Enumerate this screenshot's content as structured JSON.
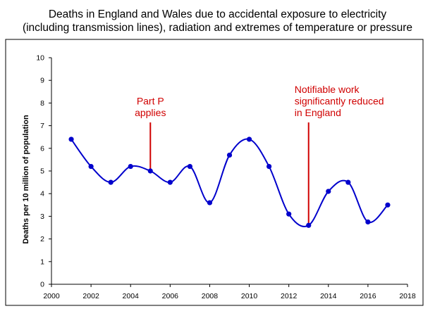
{
  "chart_data": {
    "type": "line",
    "title_line1": "Deaths in England and Wales due to accidental exposure to electricity",
    "title_line2": "(including transmission lines), radiation and extremes of temperature or pressure",
    "xlabel": "",
    "ylabel": "Deaths per 10 million of population",
    "xlim": [
      2000,
      2018
    ],
    "ylim": [
      0,
      10
    ],
    "xticks": [
      2000,
      2002,
      2004,
      2006,
      2008,
      2010,
      2012,
      2014,
      2016,
      2018
    ],
    "yticks": [
      0,
      1,
      2,
      3,
      4,
      5,
      6,
      7,
      8,
      9,
      10
    ],
    "series": [
      {
        "name": "Deaths",
        "color": "#0000cc",
        "x": [
          2001,
          2002,
          2003,
          2004,
          2005,
          2006,
          2007,
          2008,
          2009,
          2010,
          2011,
          2012,
          2013,
          2014,
          2015,
          2016,
          2017
        ],
        "y": [
          6.4,
          5.2,
          4.5,
          5.2,
          5.0,
          4.5,
          5.2,
          3.6,
          5.7,
          6.4,
          5.2,
          3.1,
          2.6,
          4.1,
          4.5,
          2.75,
          3.5
        ]
      }
    ],
    "annotations": [
      {
        "x": 2005,
        "y": 5.0,
        "lines": [
          "Part P",
          "applies"
        ],
        "color": "#d00000"
      },
      {
        "x": 2013,
        "y": 2.6,
        "lines": [
          "Notifiable work",
          "significantly reduced",
          "in England"
        ],
        "color": "#d00000"
      }
    ]
  }
}
